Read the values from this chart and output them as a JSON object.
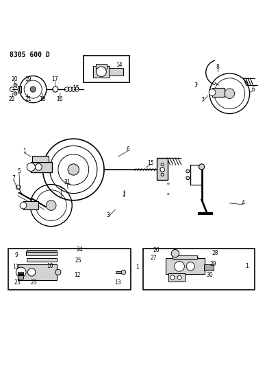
{
  "title": "8305 600 D",
  "background_color": "#ffffff",
  "line_color": "#000000",
  "fig_width": 4.1,
  "fig_height": 5.33,
  "dpi": 100
}
